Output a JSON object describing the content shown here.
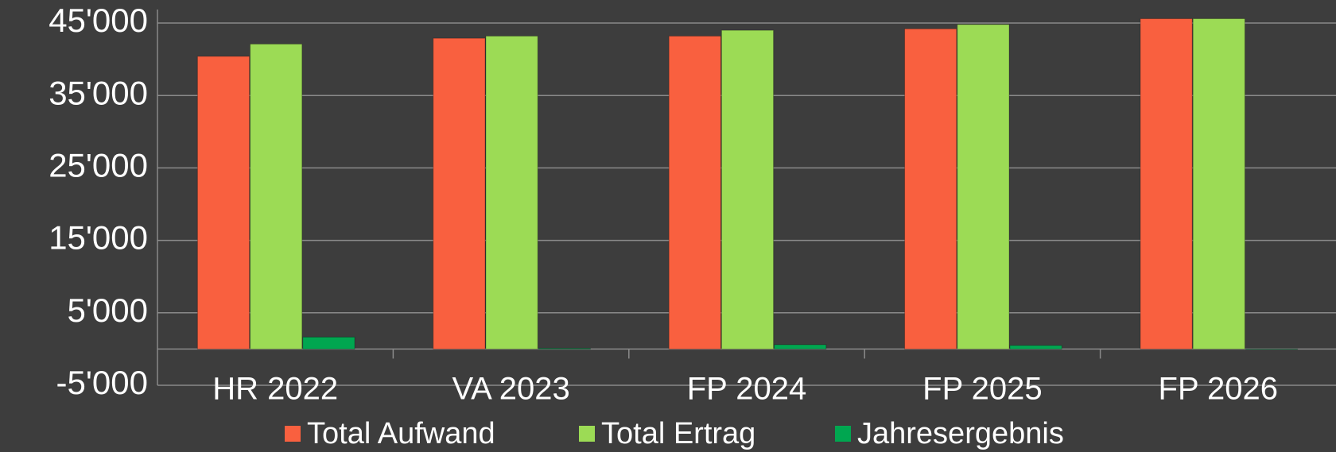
{
  "chart_data": {
    "type": "bar",
    "categories": [
      "HR 2022",
      "VA 2023",
      "FP 2024",
      "FP 2025",
      "FP 2026"
    ],
    "series": [
      {
        "name": "Total Aufwand",
        "color": "#f9603f",
        "values": [
          40400,
          42900,
          43200,
          44200,
          45600
        ]
      },
      {
        "name": "Total Ertrag",
        "color": "#9cdb55",
        "values": [
          42100,
          43200,
          44000,
          44800,
          45600
        ]
      },
      {
        "name": "Jahresergebnis",
        "color": "#00a650",
        "values": [
          1650,
          100,
          600,
          500,
          0
        ]
      }
    ],
    "ylim": [
      -5000,
      45000
    ],
    "yticks": [
      {
        "value": -5000,
        "label": "-5'000"
      },
      {
        "value": 5000,
        "label": "5'000"
      },
      {
        "value": 15000,
        "label": "15'000"
      },
      {
        "value": 25000,
        "label": "25'000"
      },
      {
        "value": 35000,
        "label": "35'000"
      },
      {
        "value": 45000,
        "label": "45'000"
      }
    ],
    "grid": true,
    "legend": "bottom"
  }
}
